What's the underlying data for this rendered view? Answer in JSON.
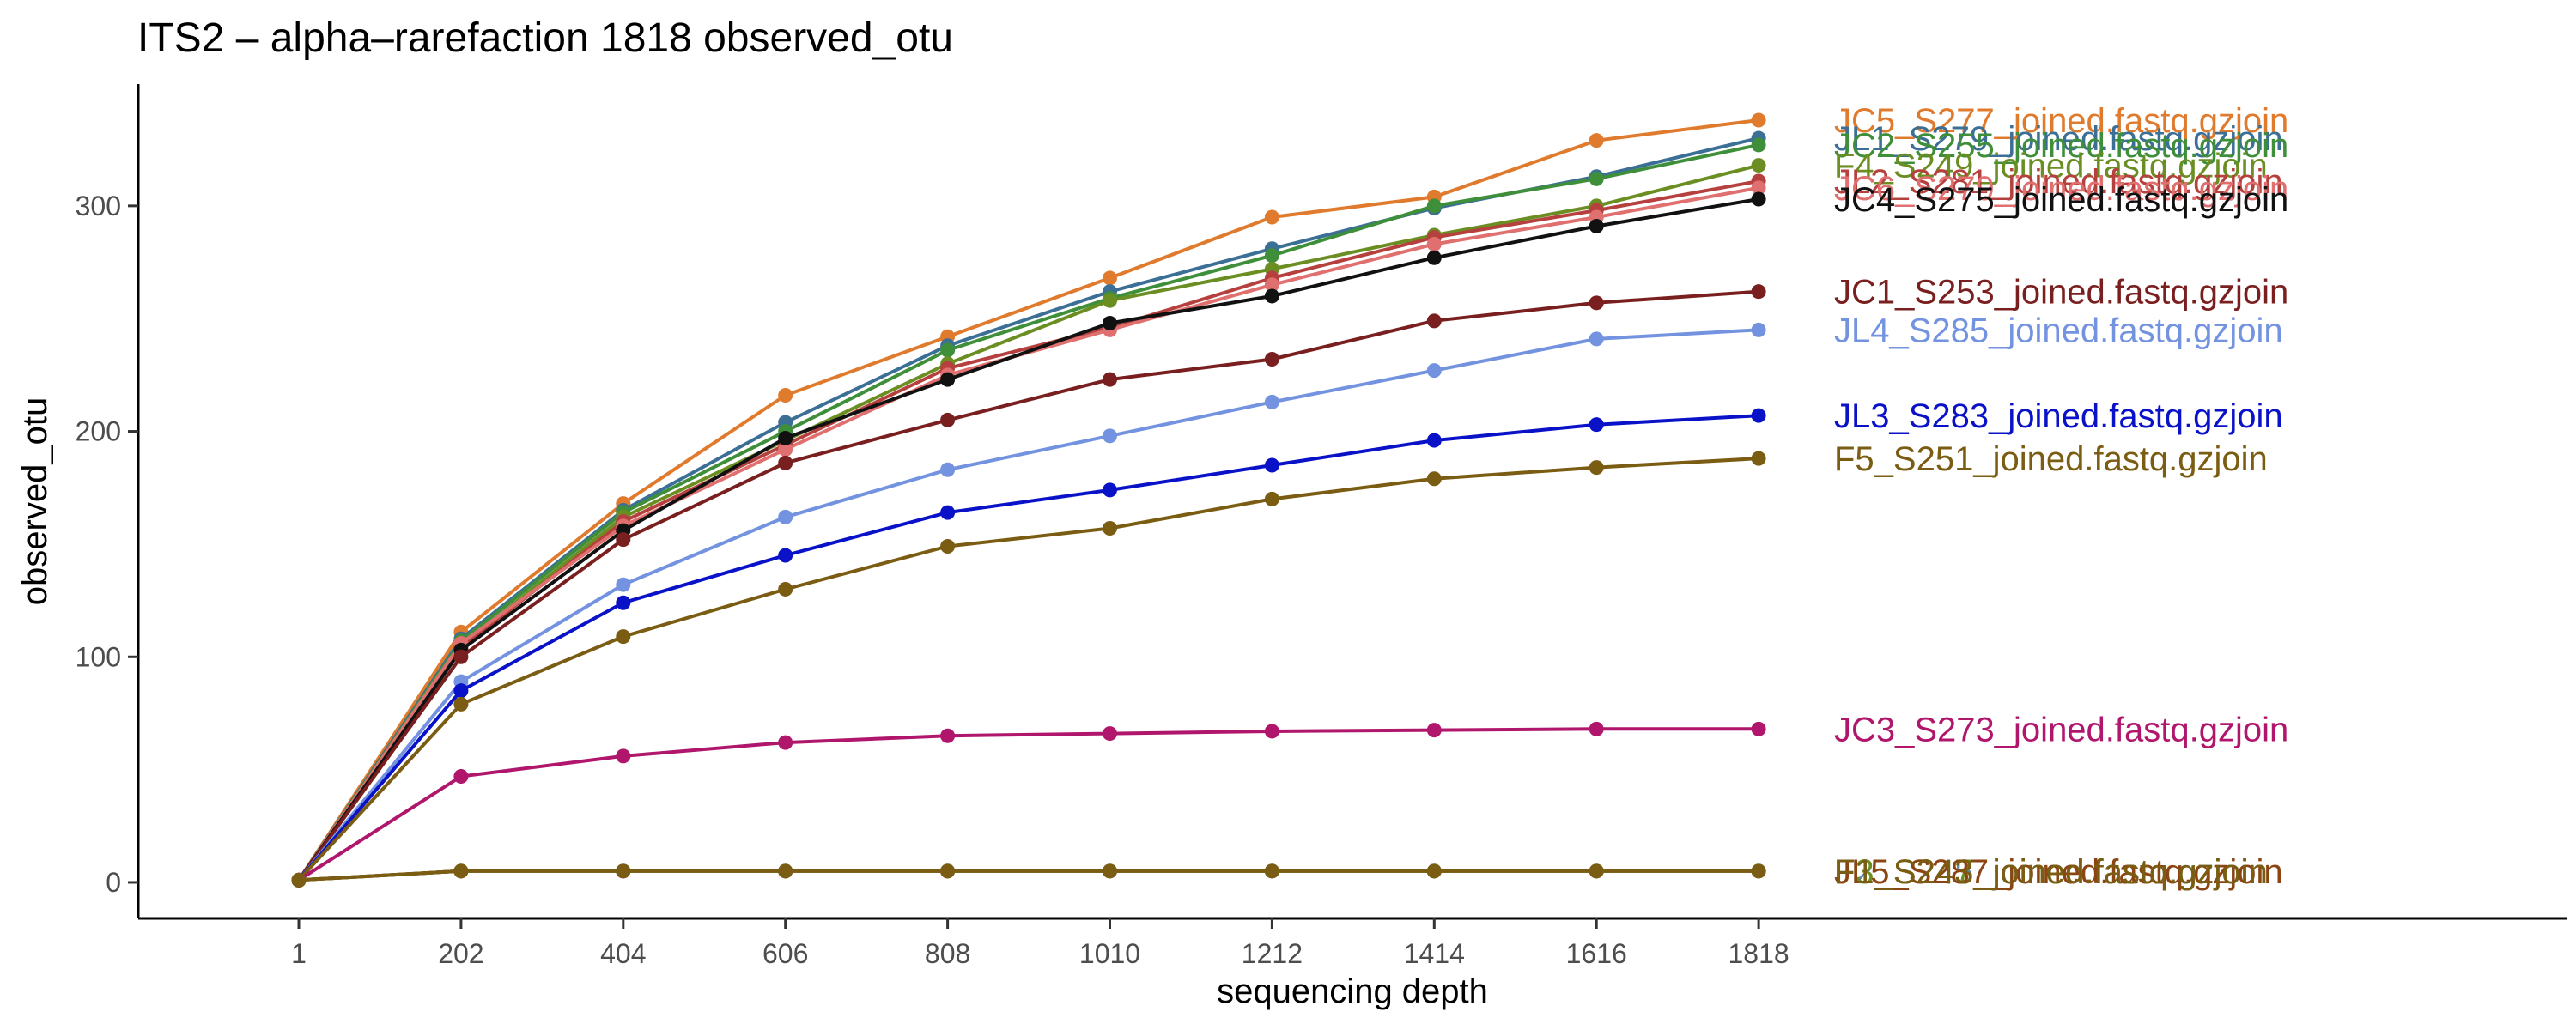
{
  "chart_data": {
    "type": "line",
    "title": "ITS2 – alpha–rarefaction 1818 observed_otu",
    "xlabel": "sequencing depth",
    "ylabel": "observed_otu",
    "x": [
      1,
      202,
      404,
      606,
      808,
      1010,
      1212,
      1414,
      1616,
      1818
    ],
    "ylim": [
      -16,
      354
    ],
    "yticks": [
      0,
      100,
      200,
      300
    ],
    "grid": false,
    "legend": "direct labels at right end of lines",
    "series": [
      {
        "name": "JC5_S277_joined.fastq.gzjoin",
        "color": "#e07b2e",
        "values": [
          1,
          111,
          168,
          216,
          242,
          268,
          295,
          304,
          329,
          338
        ]
      },
      {
        "name": "JL1_S279_joined.fastq.gzjoin",
        "color": "#3c6f96",
        "values": [
          1,
          108,
          165,
          204,
          238,
          262,
          281,
          299,
          313,
          330
        ]
      },
      {
        "name": "JC2_S255_joined.fastq.gzjoin",
        "color": "#3f8f3a",
        "values": [
          1,
          107,
          164,
          200,
          236,
          259,
          278,
          300,
          312,
          327
        ]
      },
      {
        "name": "F4_S249_joined.fastq.gzjoin",
        "color": "#6b8e23",
        "values": [
          1,
          105,
          162,
          196,
          230,
          258,
          272,
          287,
          300,
          318
        ]
      },
      {
        "name": "JL2_S281_joined.fastq.gzjoin",
        "color": "#b5403d",
        "values": [
          1,
          104,
          160,
          194,
          228,
          246,
          268,
          286,
          298,
          311
        ]
      },
      {
        "name": "JC6_S279_joined.fastq.gzjoin",
        "color": "#e07070",
        "values": [
          1,
          106,
          158,
          192,
          225,
          245,
          265,
          283,
          295,
          308
        ]
      },
      {
        "name": "JC4_S275_joined.fastq.gzjoin",
        "color": "#111111",
        "values": [
          1,
          103,
          156,
          197,
          223,
          248,
          260,
          277,
          291,
          303
        ]
      },
      {
        "name": "JC1_S253_joined.fastq.gzjoin",
        "color": "#7a1f1f",
        "values": [
          1,
          100,
          152,
          186,
          205,
          223,
          232,
          249,
          257,
          262
        ]
      },
      {
        "name": "JL4_S285_joined.fastq.gzjoin",
        "color": "#7393e0",
        "values": [
          1,
          89,
          132,
          162,
          183,
          198,
          213,
          227,
          241,
          245
        ]
      },
      {
        "name": "JL3_S283_joined.fastq.gzjoin",
        "color": "#0a12c8",
        "values": [
          1,
          85,
          124,
          145,
          164,
          174,
          185,
          196,
          203,
          207
        ]
      },
      {
        "name": "F5_S251_joined.fastq.gzjoin",
        "color": "#7a5c12",
        "values": [
          1,
          79,
          109,
          130,
          149,
          157,
          170,
          179,
          184,
          188
        ]
      },
      {
        "name": "JC3_S273_joined.fastq.gzjoin",
        "color": "#b0166c",
        "values": [
          1,
          47,
          56,
          62,
          65,
          66,
          67,
          67.5,
          68,
          68
        ]
      },
      {
        "name": "F2_S245_joined.fastq.gzjoin",
        "color": "#5b8fa8",
        "values": [
          1,
          5,
          5,
          5,
          5,
          5,
          5,
          5,
          5,
          5
        ]
      },
      {
        "name": "F3_S247_joined.fastq.gzjoin",
        "color": "#6b8e23",
        "values": [
          1,
          5,
          5,
          5,
          5,
          5,
          5,
          5,
          5,
          5
        ]
      },
      {
        "name": "JL5_S287_joined.fastq.gzjoin",
        "color": "#8b4513",
        "values": [
          1,
          5,
          5,
          5,
          5,
          5,
          5,
          5,
          5,
          5
        ]
      },
      {
        "name": "F1_S243_joined.fastq.gzjoin",
        "color": "#7a5c12",
        "values": [
          1,
          5,
          5,
          5,
          5,
          5,
          5,
          5,
          5,
          5
        ]
      }
    ]
  }
}
